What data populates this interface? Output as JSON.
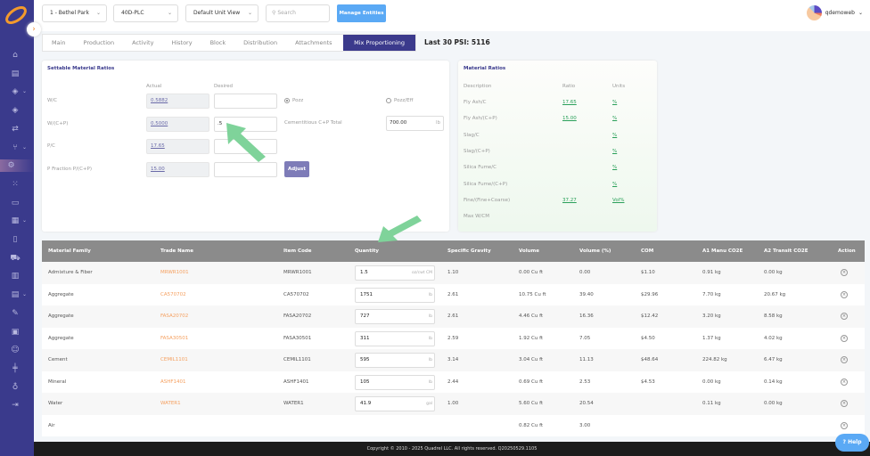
{
  "header": {
    "site": "1 - Bethel Park",
    "plant": "40D-PLC",
    "unit_view": "Default Unit View",
    "search_placeholder": "Search",
    "manage_label": "Manage Entities",
    "user": "qdemoweb"
  },
  "tabs": [
    "Main",
    "Production",
    "Activity",
    "History",
    "Block",
    "Distribution",
    "Attachments",
    "Mix Proportioning"
  ],
  "psi": "Last 30 PSI: 5116",
  "sidebar": {
    "icons": [
      "home-icon",
      "document-icon",
      "layers-icon",
      "stack-icon",
      "swap-icon",
      "network-icon",
      "mix-icon",
      "nodes-icon",
      "folder-icon",
      "calendar-icon",
      "cup-icon",
      "truck-icon",
      "chart-icon",
      "notes-icon",
      "tag-icon",
      "clipboard-icon",
      "users-icon",
      "sliders-icon",
      "moneybag-icon",
      "logout-icon"
    ]
  },
  "settable": {
    "title": "Settable Material Ratios",
    "actual_label": "Actual",
    "desired_label": "Desired",
    "rows": [
      {
        "label": "W/C",
        "actual": "0.5882",
        "desired": ""
      },
      {
        "label": "W/(C+P)",
        "actual": "0.5000",
        "desired": ".5"
      },
      {
        "label": "P/C",
        "actual": "17.65",
        "desired": ""
      },
      {
        "label": "P Fraction P/(C+P)",
        "actual": "15.00",
        "desired": ""
      }
    ],
    "pozz": "Pozz",
    "pozz_eff": "Pozz/Eff",
    "cementitious_label": "Cementitious C+P Total",
    "cementitious_value": "700.00",
    "cementitious_unit": "lb",
    "adjust_label": "Adjust"
  },
  "ratios": {
    "title": "Material Ratios",
    "headers": [
      "Description",
      "Ratio",
      "Units"
    ],
    "rows": [
      {
        "desc": "Fly Ash/C",
        "ratio": "17.65",
        "units": "%"
      },
      {
        "desc": "Fly Ash/(C+P)",
        "ratio": "15.00",
        "units": "%"
      },
      {
        "desc": "Slag/C",
        "ratio": "",
        "units": "%"
      },
      {
        "desc": "Slag/(C+P)",
        "ratio": "",
        "units": "%"
      },
      {
        "desc": "Silica Fume/C",
        "ratio": "",
        "units": "%"
      },
      {
        "desc": "Silica Fume/(C+P)",
        "ratio": "",
        "units": "%"
      },
      {
        "desc": "Fine/(Fine+Coarse)",
        "ratio": "37.27",
        "units": "Vol%"
      },
      {
        "desc": "Max W/CM",
        "ratio": "",
        "units": ""
      }
    ]
  },
  "table": {
    "headers": [
      "Material Family",
      "Trade Name",
      "Item Code",
      "Quantity",
      "Specific Gravity",
      "Volume",
      "Volume (%)",
      "COM",
      "A1 Manu CO2E",
      "A2 Transit CO2E",
      "Action"
    ],
    "rows": [
      {
        "family": "Admixture & Fiber",
        "trade": "MRWR1001",
        "code": "MRWR1001",
        "qty": "1.5",
        "unit": "oz/cwt CM",
        "sg": "1.10",
        "vol": "0.00 Cu ft",
        "volpct": "0.00",
        "com": "$1.10",
        "a1": "0.91 kg",
        "a2": "0.00 kg"
      },
      {
        "family": "Aggregate",
        "trade": "CA570702",
        "code": "CA570702",
        "qty": "1751",
        "unit": "lb",
        "sg": "2.61",
        "vol": "10.75 Cu ft",
        "volpct": "39.40",
        "com": "$29.96",
        "a1": "7.70 kg",
        "a2": "20.67 kg"
      },
      {
        "family": "Aggregate",
        "trade": "FASA20702",
        "code": "FASA20702",
        "qty": "727",
        "unit": "lb",
        "sg": "2.61",
        "vol": "4.46 Cu ft",
        "volpct": "16.36",
        "com": "$12.42",
        "a1": "3.20 kg",
        "a2": "8.58 kg"
      },
      {
        "family": "Aggregate",
        "trade": "FASA30501",
        "code": "FASA30501",
        "qty": "311",
        "unit": "lb",
        "sg": "2.59",
        "vol": "1.92 Cu ft",
        "volpct": "7.05",
        "com": "$4.50",
        "a1": "1.37 kg",
        "a2": "4.02 kg"
      },
      {
        "family": "Cement",
        "trade": "CEMIL1101",
        "code": "CEMIL1101",
        "qty": "595",
        "unit": "lb",
        "sg": "3.14",
        "vol": "3.04 Cu ft",
        "volpct": "11.13",
        "com": "$48.64",
        "a1": "224.82 kg",
        "a2": "6.47 kg"
      },
      {
        "family": "Mineral",
        "trade": "ASHF1401",
        "code": "ASHF1401",
        "qty": "105",
        "unit": "lb",
        "sg": "2.44",
        "vol": "0.69 Cu ft",
        "volpct": "2.53",
        "com": "$4.53",
        "a1": "0.00 kg",
        "a2": "0.14 kg"
      },
      {
        "family": "Water",
        "trade": "WATER1",
        "code": "WATER1",
        "qty": "41.9",
        "unit": "gal",
        "sg": "1.00",
        "vol": "5.60 Cu ft",
        "volpct": "20.54",
        "com": "",
        "a1": "0.11 kg",
        "a2": "0.00 kg"
      },
      {
        "family": "Air",
        "trade": "",
        "code": "",
        "qty": null,
        "unit": "",
        "sg": "",
        "vol": "0.82 Cu ft",
        "volpct": "3.00",
        "com": "",
        "a1": "",
        "a2": ""
      }
    ]
  },
  "footer": "Copyright © 2010 - 2025 Quadrel LLC. All rights reserved. Q20250529.1105",
  "help_label": "Help",
  "colors": {
    "sidebar": "#3a3a8c",
    "accent": "#3b3a8c",
    "manage": "#5aa9f5",
    "trade_link": "#f5a060",
    "ratio_link": "#2aa05a",
    "annotation_arrow": "#7fd39a"
  }
}
